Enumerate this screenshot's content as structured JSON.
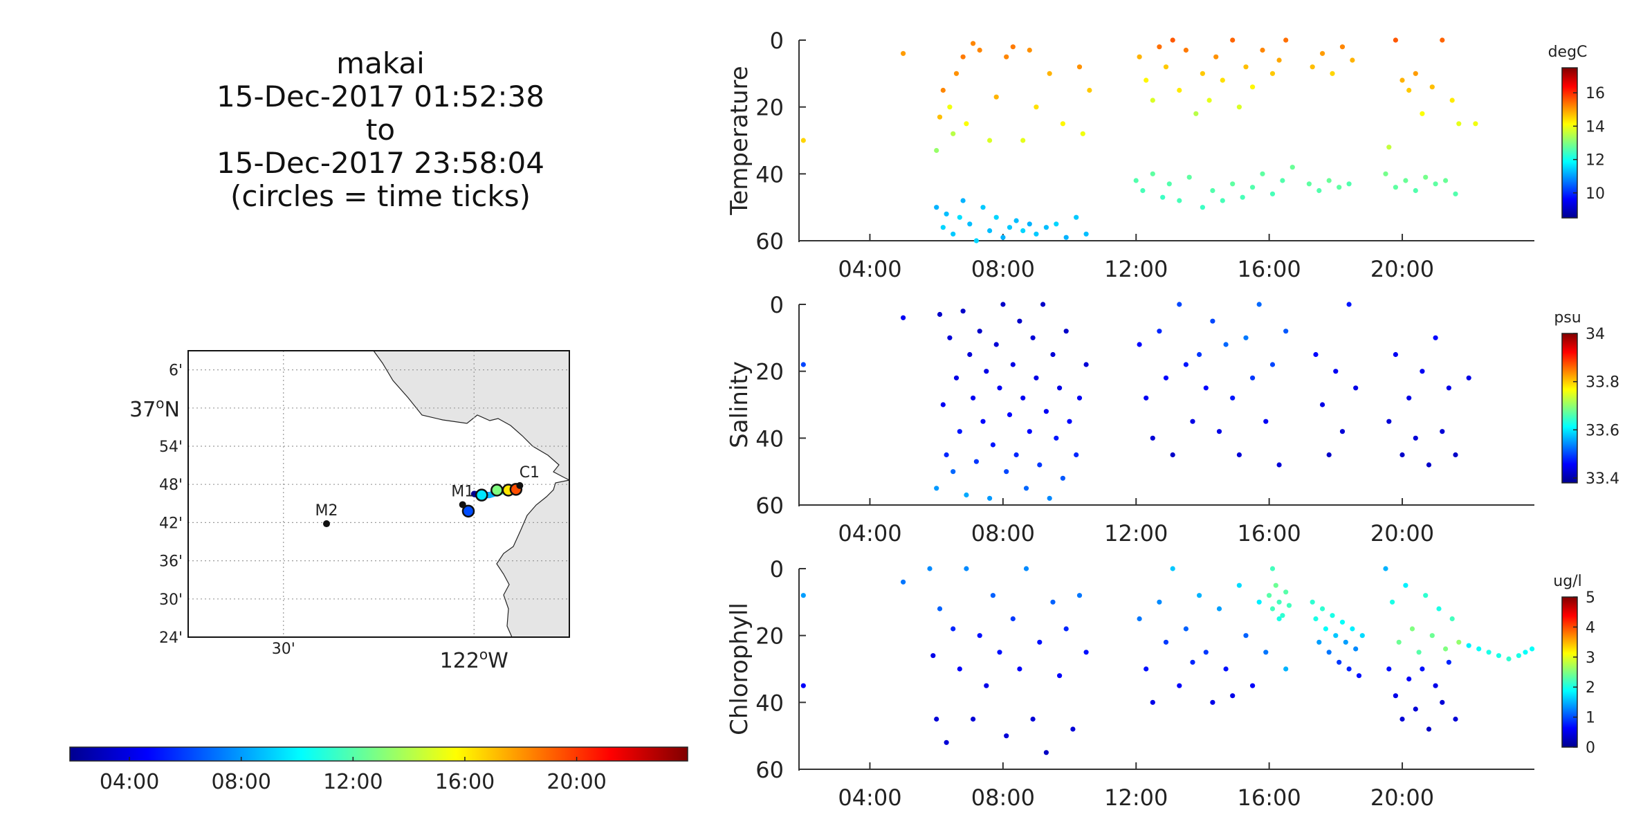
{
  "title_block": {
    "vehicle": "makai",
    "start": "15-Dec-2017 01:52:38",
    "to": "to",
    "end": "15-Dec-2017 23:58:04",
    "note": "(circles = time ticks)"
  },
  "time_ticks": [
    "04:00",
    "08:00",
    "12:00",
    "16:00",
    "20:00"
  ],
  "map": {
    "lat_ticks": [
      "6'",
      "37°N",
      "54'",
      "48'",
      "42'",
      "36'",
      "30'",
      "24'"
    ],
    "lon_ticks": [
      "30'",
      "122°W"
    ],
    "stations": [
      {
        "name": "M2",
        "lon": -122.387,
        "lat": 36.697
      },
      {
        "name": "M1",
        "lon": -122.03,
        "lat": 36.747
      },
      {
        "name": "C1",
        "lon": -121.88,
        "lat": 36.797
      }
    ],
    "xlim": [
      -122.75,
      -121.75
    ],
    "ylim": [
      36.4,
      37.15
    ],
    "land_color": "#e5e5e5"
  },
  "colors": {
    "jet_stops": [
      "#00008f",
      "#0000ff",
      "#0080ff",
      "#00ffff",
      "#80ff80",
      "#ffff00",
      "#ff8000",
      "#ff0000",
      "#800000"
    ],
    "axis": "#333333",
    "grid": "#999999"
  },
  "chart_data": [
    {
      "type": "scatter",
      "ylabel": "Temperature",
      "ylim": [
        0,
        60
      ],
      "yticks": [
        "0",
        "20",
        "40",
        "60"
      ],
      "xlim_hours": [
        1.87,
        23.97
      ],
      "colorbar": {
        "unit": "degC",
        "range": [
          8.5,
          17.5
        ],
        "ticks": [
          "10",
          "12",
          "14",
          "16"
        ]
      },
      "series": [
        {
          "x": [
            2.0,
            5.0,
            6.0,
            6.1,
            6.2,
            6.4,
            6.5,
            6.6,
            6.8,
            6.9,
            7.1,
            7.3,
            7.6,
            7.8,
            8.1,
            8.3,
            8.6,
            8.8,
            9.0,
            9.4,
            9.8,
            10.3,
            10.4,
            10.6
          ],
          "y": [
            30,
            4,
            33,
            23,
            15,
            20,
            28,
            10,
            5,
            25,
            1,
            3,
            30,
            17,
            5,
            2,
            30,
            3,
            20,
            10,
            25,
            8,
            28,
            15
          ],
          "c": [
            14.5,
            15,
            13.2,
            14.7,
            15.2,
            14,
            13.5,
            15.1,
            15.3,
            14.1,
            15.2,
            15.2,
            13.8,
            14.8,
            15.2,
            15.3,
            13.9,
            15.1,
            14.4,
            14.8,
            14.2,
            15.1,
            14,
            14.6
          ]
        },
        {
          "x": [
            6.0,
            6.2,
            6.3,
            6.5,
            6.7,
            6.8,
            7.0,
            7.2,
            7.4,
            7.6,
            7.8,
            8.0,
            8.2,
            8.4,
            8.6,
            8.8,
            9.0,
            9.3,
            9.6,
            9.9,
            10.2,
            10.5
          ],
          "y": [
            50,
            56,
            52,
            58,
            53,
            48,
            55,
            60,
            50,
            57,
            53,
            59,
            56,
            54,
            57,
            55,
            58,
            56,
            55,
            59,
            53,
            58
          ],
          "c": [
            11.2,
            11.5,
            11.3,
            11.4,
            11.6,
            11.2,
            11.3,
            11.5,
            11.4,
            11.3,
            11.5,
            11.2,
            11.4,
            11.3,
            11.5,
            11.2,
            11.4,
            11.3,
            11.5,
            11.2,
            11.4,
            11.3
          ]
        },
        {
          "x": [
            12.1,
            12.3,
            12.5,
            12.7,
            12.9,
            13.1,
            13.3,
            13.5,
            13.8,
            14.0,
            14.2,
            14.4,
            14.6,
            14.9,
            15.1,
            15.3,
            15.5,
            15.8,
            16.1,
            16.3,
            16.5,
            17.3,
            17.6,
            17.9,
            18.2,
            18.5
          ],
          "y": [
            5,
            12,
            18,
            2,
            8,
            0,
            15,
            3,
            22,
            10,
            18,
            5,
            12,
            0,
            20,
            8,
            14,
            3,
            10,
            6,
            0,
            8,
            4,
            10,
            2,
            6
          ],
          "c": [
            14.8,
            14.2,
            13.8,
            15.4,
            14.6,
            15.6,
            14.3,
            15.3,
            13.5,
            14.6,
            13.9,
            15.1,
            14.4,
            15.5,
            13.8,
            14.7,
            14.2,
            15.2,
            14.6,
            14.9,
            15.4,
            14.7,
            15,
            14.5,
            15.2,
            14.8
          ]
        },
        {
          "x": [
            12.0,
            12.2,
            12.5,
            12.8,
            13.0,
            13.3,
            13.6,
            14.0,
            14.3,
            14.6,
            14.9,
            15.2,
            15.5,
            15.8,
            16.1,
            16.4,
            16.7,
            17.2,
            17.5,
            17.8,
            18.1,
            18.4,
            19.5,
            19.8,
            20.1,
            20.4,
            20.7,
            21.0,
            21.3,
            21.6
          ],
          "y": [
            42,
            45,
            40,
            47,
            43,
            48,
            41,
            50,
            45,
            48,
            43,
            47,
            44,
            40,
            46,
            42,
            38,
            43,
            45,
            42,
            44,
            43,
            40,
            44,
            42,
            45,
            41,
            43,
            42,
            46
          ],
          "c": [
            12.6,
            12.5,
            12.7,
            12.4,
            12.6,
            12.5,
            12.7,
            12.4,
            12.6,
            12.5,
            12.7,
            12.5,
            12.6,
            12.7,
            12.5,
            12.6,
            12.8,
            12.7,
            12.6,
            12.8,
            12.7,
            12.6,
            12.9,
            12.7,
            12.8,
            12.6,
            12.9,
            12.7,
            12.8,
            12.6
          ]
        },
        {
          "x": [
            19.6,
            19.8,
            20.0,
            20.2,
            20.4,
            20.6,
            20.9,
            21.2,
            21.5,
            21.7,
            22.2
          ],
          "y": [
            32,
            0,
            12,
            15,
            10,
            22,
            14,
            0,
            18,
            25,
            25
          ],
          "c": [
            13.6,
            15.6,
            14.8,
            14.6,
            15,
            14.1,
            14.7,
            15.5,
            14.3,
            13.9,
            14
          ]
        }
      ]
    },
    {
      "type": "scatter",
      "ylabel": "Salinity",
      "ylim": [
        0,
        60
      ],
      "yticks": [
        "0",
        "20",
        "40",
        "60"
      ],
      "xlim_hours": [
        1.87,
        23.97
      ],
      "colorbar": {
        "unit": "psu",
        "range": [
          33.38,
          34.0
        ],
        "ticks": [
          "33.4",
          "33.6",
          "33.8",
          "34"
        ]
      },
      "series": [
        {
          "x": [
            2.0,
            5.0,
            6.0,
            6.1,
            6.2,
            6.3,
            6.4,
            6.5,
            6.6,
            6.7,
            6.8,
            6.9,
            7.0,
            7.1,
            7.2,
            7.3,
            7.4,
            7.5,
            7.6,
            7.7,
            7.8,
            7.9,
            8.0,
            8.1,
            8.2,
            8.3,
            8.4,
            8.5,
            8.6,
            8.7,
            8.8,
            8.9,
            9.0,
            9.1,
            9.2,
            9.3,
            9.4,
            9.5,
            9.6,
            9.7,
            9.8,
            9.9,
            10.0,
            10.2,
            10.3,
            10.5
          ],
          "y": [
            18,
            4,
            55,
            3,
            30,
            45,
            10,
            50,
            22,
            38,
            2,
            57,
            15,
            28,
            47,
            8,
            35,
            20,
            58,
            42,
            12,
            25,
            0,
            50,
            33,
            18,
            45,
            5,
            28,
            55,
            38,
            10,
            22,
            48,
            0,
            32,
            58,
            15,
            40,
            25,
            52,
            8,
            35,
            45,
            28,
            18
          ],
          "c": [
            33.5,
            33.45,
            33.55,
            33.42,
            33.45,
            33.48,
            33.43,
            33.52,
            33.44,
            33.47,
            33.42,
            33.56,
            33.43,
            33.45,
            33.49,
            33.42,
            33.46,
            33.44,
            33.55,
            33.47,
            33.43,
            33.45,
            33.42,
            33.5,
            33.46,
            33.44,
            33.48,
            33.42,
            33.45,
            33.52,
            33.46,
            33.43,
            33.44,
            33.49,
            33.42,
            33.45,
            33.54,
            33.43,
            33.47,
            33.44,
            33.51,
            33.42,
            33.46,
            33.48,
            33.45,
            33.43
          ]
        },
        {
          "x": [
            12.1,
            12.3,
            12.5,
            12.7,
            12.9,
            13.1,
            13.3,
            13.5,
            13.7,
            13.9,
            14.1,
            14.3,
            14.5,
            14.7,
            14.9,
            15.1,
            15.3,
            15.5,
            15.7,
            15.9,
            16.1,
            16.3,
            16.5
          ],
          "y": [
            12,
            28,
            40,
            8,
            22,
            45,
            0,
            18,
            35,
            15,
            25,
            5,
            38,
            12,
            28,
            45,
            10,
            22,
            0,
            35,
            18,
            48,
            8
          ],
          "c": [
            33.46,
            33.45,
            33.43,
            33.48,
            33.46,
            33.42,
            33.5,
            33.47,
            33.44,
            33.49,
            33.46,
            33.5,
            33.44,
            33.52,
            33.47,
            33.43,
            33.53,
            33.49,
            33.52,
            33.45,
            33.5,
            33.43,
            33.51
          ]
        },
        {
          "x": [
            17.4,
            17.6,
            17.8,
            18.0,
            18.2,
            18.4,
            18.6,
            19.6,
            19.8,
            20.0,
            20.2,
            20.4,
            20.6,
            20.8,
            21.0,
            21.2,
            21.4,
            21.6,
            22.0
          ],
          "y": [
            15,
            30,
            45,
            20,
            38,
            0,
            25,
            35,
            15,
            45,
            28,
            40,
            20,
            48,
            10,
            38,
            25,
            45,
            22
          ],
          "c": [
            33.46,
            33.44,
            33.42,
            33.45,
            33.43,
            33.47,
            33.44,
            33.43,
            33.45,
            33.42,
            33.44,
            33.43,
            33.45,
            33.42,
            33.46,
            33.43,
            33.44,
            33.42,
            33.44
          ]
        }
      ]
    },
    {
      "type": "scatter",
      "ylabel": "Chlorophyll",
      "ylim": [
        0,
        60
      ],
      "yticks": [
        "0",
        "20",
        "40",
        "60"
      ],
      "xlim_hours": [
        1.87,
        23.97
      ],
      "colorbar": {
        "unit": "ug/l",
        "range": [
          0,
          5
        ],
        "ticks": [
          "0",
          "1",
          "2",
          "3",
          "4",
          "5"
        ]
      },
      "series": [
        {
          "x": [
            2.0,
            2.0,
            5.0,
            5.8,
            5.9,
            6.0,
            6.1,
            6.3,
            6.5,
            6.7,
            6.9,
            7.1,
            7.3,
            7.5,
            7.7,
            7.9,
            8.1,
            8.3,
            8.5,
            8.7,
            8.9,
            9.1,
            9.3,
            9.5,
            9.7,
            9.9,
            10.1,
            10.3,
            10.5
          ],
          "y": [
            8,
            35,
            4,
            0,
            26,
            45,
            12,
            52,
            18,
            30,
            0,
            45,
            20,
            35,
            8,
            25,
            50,
            15,
            30,
            0,
            45,
            22,
            55,
            10,
            32,
            18,
            48,
            8,
            25
          ],
          "c": [
            1.4,
            0.6,
            1.2,
            1.3,
            0.5,
            0.4,
            1.1,
            0.4,
            0.8,
            0.6,
            1.3,
            0.4,
            0.7,
            0.5,
            1.1,
            0.7,
            0.4,
            0.9,
            0.6,
            1.3,
            0.4,
            0.7,
            0.3,
            1.1,
            0.6,
            0.8,
            0.4,
            1.2,
            0.7
          ]
        },
        {
          "x": [
            12.1,
            12.3,
            12.5,
            12.7,
            12.9,
            13.1,
            13.3,
            13.5,
            13.7,
            13.9,
            14.1,
            14.3,
            14.5,
            14.7,
            14.9,
            15.1,
            15.3,
            15.5,
            15.7,
            15.9,
            16.1,
            16.3,
            16.5
          ],
          "y": [
            15,
            30,
            40,
            10,
            22,
            0,
            35,
            18,
            28,
            8,
            25,
            40,
            12,
            30,
            38,
            5,
            20,
            35,
            10,
            25,
            0,
            15,
            30
          ],
          "c": [
            1.2,
            0.7,
            0.5,
            1.3,
            0.9,
            1.6,
            0.6,
            1.1,
            0.8,
            1.5,
            0.9,
            0.5,
            1.4,
            0.7,
            0.5,
            1.7,
            1.1,
            0.6,
            1.8,
            1.2,
            2.2,
            2.0,
            1.5
          ]
        },
        {
          "x": [
            16.0,
            16.1,
            16.2,
            16.3,
            16.4,
            16.5,
            16.6,
            17.3,
            17.4,
            17.5,
            17.6,
            17.7,
            17.8,
            17.9,
            18.0,
            18.1,
            18.2,
            18.3,
            18.4,
            18.5,
            18.6,
            18.7,
            18.8
          ],
          "y": [
            8,
            12,
            5,
            10,
            14,
            7,
            11,
            10,
            15,
            22,
            12,
            18,
            25,
            14,
            20,
            28,
            16,
            22,
            30,
            18,
            24,
            32,
            20
          ],
          "c": [
            2.3,
            2.2,
            2.4,
            2.2,
            2.1,
            2.3,
            2.2,
            2.1,
            2.0,
            1.4,
            2.1,
            1.9,
            1.2,
            2.0,
            1.6,
            0.9,
            1.9,
            1.4,
            0.8,
            1.8,
            1.3,
            0.7,
            1.7
          ]
        },
        {
          "x": [
            19.5,
            19.7,
            19.9,
            20.1,
            20.3,
            20.5,
            20.7,
            20.9,
            21.1,
            21.3,
            21.5,
            21.7,
            19.6,
            19.8,
            20.0,
            20.2,
            20.4,
            20.6,
            20.8,
            21.0,
            21.2,
            21.4,
            21.6
          ],
          "y": [
            0,
            10,
            22,
            5,
            18,
            25,
            8,
            20,
            12,
            24,
            15,
            22,
            30,
            38,
            45,
            33,
            42,
            30,
            48,
            35,
            40,
            28,
            45
          ],
          "c": [
            1.5,
            2.0,
            2.4,
            1.8,
            2.5,
            2.3,
            2.1,
            2.4,
            2.0,
            2.5,
            2.2,
            2.6,
            0.7,
            0.5,
            0.4,
            0.6,
            0.4,
            0.7,
            0.3,
            0.5,
            0.4,
            0.8,
            0.4
          ]
        },
        {
          "x": [
            22.0,
            22.3,
            22.6,
            22.9,
            23.2,
            23.5,
            23.7,
            23.9
          ],
          "y": [
            23,
            24,
            25,
            26,
            27,
            26,
            25,
            24
          ],
          "c": [
            1.8,
            1.9,
            2.0,
            2.0,
            2.1,
            2.0,
            1.9,
            1.9
          ]
        }
      ]
    }
  ]
}
